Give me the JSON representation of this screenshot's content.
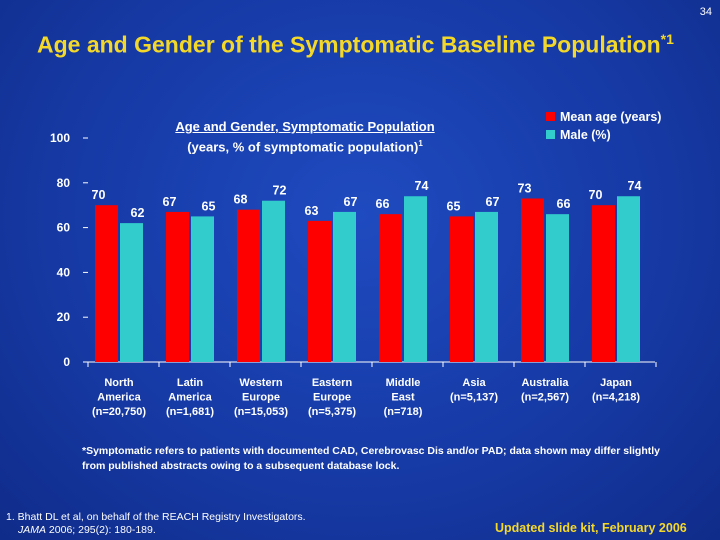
{
  "page_number": "34",
  "title": "Age and Gender of the Symptomatic Baseline Population",
  "title_superscript": "*1",
  "footnote": "*Symptomatic refers to patients with documented CAD, Cerebrovasc Dis and/or PAD; data shown may differ slightly from published abstracts owing to a subsequent database lock.",
  "reference_line1": "1. Bhatt DL et al, on behalf of the REACH Registry Investigators.",
  "reference_journal": "JAMA",
  "reference_line2": " 2006; 295(2): 180-189.",
  "updated": "Updated slide kit, February 2006",
  "chart_data": {
    "type": "bar",
    "title_line1": "Age and Gender, Symptomatic Population",
    "title_line2": "(years, % of symptomatic population)",
    "title_superscript": "1",
    "categories": [
      [
        "North",
        "America",
        "(n=20,750)"
      ],
      [
        "Latin",
        "America",
        "(n=1,681)"
      ],
      [
        "Western",
        "Europe",
        "(n=15,053)"
      ],
      [
        "Eastern",
        "Europe",
        "(n=5,375)"
      ],
      [
        "Middle",
        "East",
        "(n=718)"
      ],
      [
        "Asia",
        "(n=5,137)"
      ],
      [
        "Australia",
        "(n=2,567)"
      ],
      [
        "Japan",
        "(n=4,218)"
      ]
    ],
    "series": [
      {
        "name": "Mean age (years)",
        "color": "#ff0000",
        "values": [
          70,
          67,
          68,
          63,
          66,
          65,
          73,
          70
        ]
      },
      {
        "name": "Male (%)",
        "color": "#33cccc",
        "values": [
          62,
          65,
          72,
          67,
          74,
          67,
          66,
          74
        ]
      }
    ],
    "ylim": [
      0,
      100
    ],
    "yticks": [
      0,
      20,
      40,
      60,
      80,
      100
    ],
    "grid": false,
    "legend": "top-right"
  }
}
